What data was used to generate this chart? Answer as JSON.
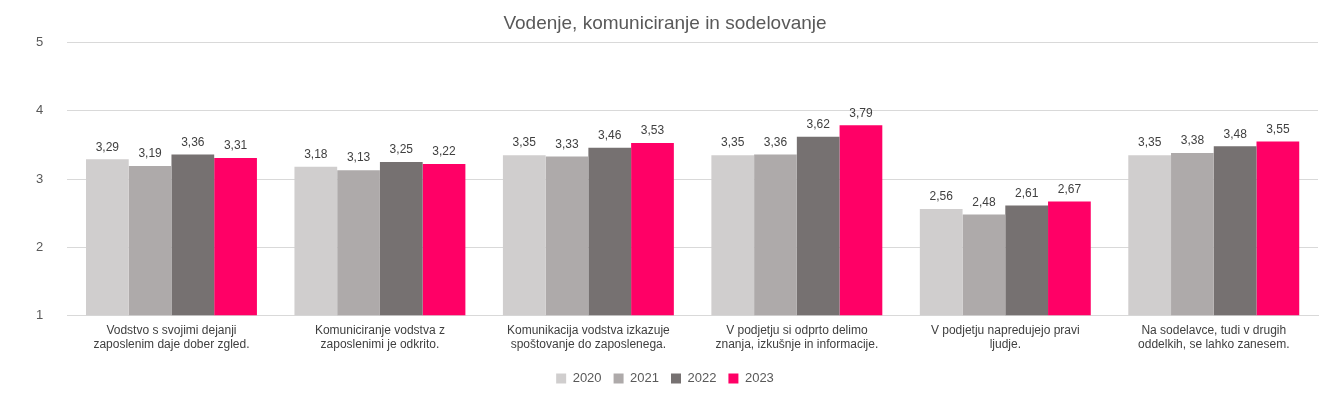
{
  "chart_data": {
    "type": "bar",
    "title": "Vodenje, komuniciranje in sodelovanje",
    "categories": [
      "Vodstvo s svojimi dejanji zaposlenim daje dober zgled.",
      "Komuniciranje vodstva z zaposlenimi je odkrito.",
      "Komunikacija vodstva izkazuje spoštovanje do zaposlenega.",
      "V podjetju si odprto delimo znanja, izkušnje in informacije.",
      "V podjetju napredujejo pravi ljudje.",
      "Na sodelavce, tudi v drugih oddelkih, se lahko zanesem."
    ],
    "series": [
      {
        "name": "2020",
        "color": "#d0cece",
        "values": [
          3.29,
          3.18,
          3.35,
          3.35,
          2.56,
          3.35
        ],
        "value_labels": [
          "3,29",
          "3,18",
          "3,35",
          "3,35",
          "2,56",
          "3,35"
        ]
      },
      {
        "name": "2021",
        "color": "#aeaaaa",
        "values": [
          3.19,
          3.13,
          3.33,
          3.36,
          2.48,
          3.38
        ],
        "value_labels": [
          "3,19",
          "3,13",
          "3,33",
          "3,36",
          "2,48",
          "3,38"
        ]
      },
      {
        "name": "2022",
        "color": "#767171",
        "values": [
          3.36,
          3.25,
          3.46,
          3.62,
          2.61,
          3.48
        ],
        "value_labels": [
          "3,36",
          "3,25",
          "3,46",
          "3,62",
          "2,61",
          "3,48"
        ]
      },
      {
        "name": "2023",
        "color": "#ff0066",
        "values": [
          3.31,
          3.22,
          3.53,
          3.79,
          2.67,
          3.55
        ],
        "value_labels": [
          "3,31",
          "3,22",
          "3,53",
          "3,79",
          "2,67",
          "3,55"
        ]
      }
    ],
    "ylim": [
      1,
      5
    ],
    "yticks": [
      1,
      2,
      3,
      4,
      5
    ],
    "grid": "y",
    "legend": "bottom"
  }
}
